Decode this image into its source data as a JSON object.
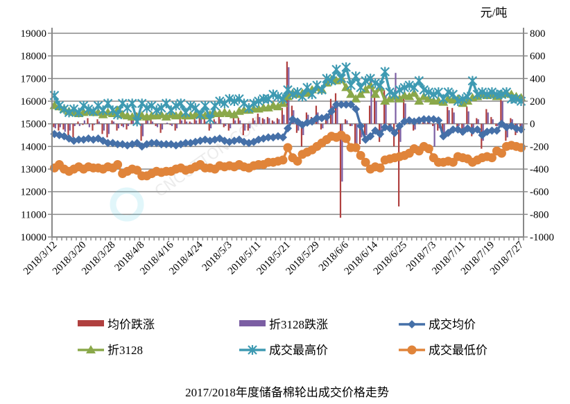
{
  "chart_data": {
    "type": "line",
    "title": "2017/2018年度储备棉轮出成交价格走势",
    "right_axis_unit": "元/吨",
    "x_tick_labels": [
      "2018/3/12",
      "2018/3/20",
      "2018/3/28",
      "2018/4/8",
      "2018/4/16",
      "2018/4/24",
      "2018/5/3",
      "2018/5/11",
      "2018/5/21",
      "2018/5/29",
      "2018/6/6",
      "2018/6/14",
      "2018/6/25",
      "2018/7/3",
      "2018/7/11",
      "2018/7/19",
      "2018/7/27"
    ],
    "left_axis": {
      "ylim": [
        10000,
        19000
      ],
      "ticks": [
        10000,
        11000,
        12000,
        13000,
        14000,
        15000,
        16000,
        17000,
        18000,
        19000
      ]
    },
    "right_axis": {
      "ylim": [
        -1000,
        800
      ],
      "ticks": [
        -1000,
        -800,
        -600,
        -400,
        -200,
        0,
        200,
        400,
        600,
        800
      ]
    },
    "grid": true,
    "legend_placement": "bottom",
    "series": [
      {
        "name": "均价跌涨",
        "kind": "bar",
        "axis": "right",
        "color": "#b0403f",
        "values": [
          -30,
          -60,
          -50,
          -100,
          -120,
          20,
          -10,
          50,
          -60,
          40,
          -90,
          -120,
          30,
          -60,
          -20,
          -50,
          40,
          100,
          -150,
          60,
          40,
          -20,
          -80,
          0,
          -10,
          -60,
          50,
          40,
          20,
          50,
          60,
          50,
          -60,
          40,
          60,
          -30,
          -60,
          50,
          50,
          -100,
          -60,
          50,
          90,
          50,
          60,
          30,
          50,
          140,
          550,
          160,
          -80,
          -200,
          100,
          60,
          160,
          -50,
          60,
          220,
          270,
          -830,
          40,
          -20,
          -230,
          -180,
          -120,
          160,
          250,
          -160,
          300,
          -60,
          -200,
          -730,
          230,
          60,
          -60,
          50,
          50,
          40,
          -20,
          -60,
          -110,
          150,
          140,
          -30,
          -100,
          150,
          -110,
          50,
          -220,
          130,
          60,
          -20,
          290,
          -150,
          50,
          -100,
          -50
        ]
      },
      {
        "name": "折3128跌涨",
        "kind": "bar",
        "axis": "right",
        "color": "#7b5ea3",
        "values": [
          -40,
          -30,
          -70,
          -60,
          -20,
          -20,
          30,
          -30,
          -10,
          20,
          -60,
          -90,
          20,
          -40,
          -30,
          -20,
          30,
          60,
          -110,
          40,
          20,
          -30,
          -50,
          10,
          -20,
          -40,
          30,
          20,
          10,
          30,
          40,
          20,
          -40,
          20,
          40,
          -20,
          -40,
          30,
          30,
          -60,
          -40,
          30,
          60,
          40,
          50,
          20,
          40,
          80,
          500,
          120,
          -60,
          -100,
          80,
          40,
          100,
          -40,
          40,
          160,
          200,
          -510,
          30,
          -20,
          -180,
          -120,
          -100,
          420,
          200,
          -120,
          250,
          -40,
          450,
          -160,
          180,
          40,
          -50,
          40,
          40,
          30,
          -200,
          -40,
          -90,
          120,
          100,
          -20,
          -80,
          110,
          -90,
          40,
          -150,
          100,
          40,
          -20,
          200,
          -120,
          40,
          -80,
          -40
        ]
      },
      {
        "name": "成交均价",
        "kind": "line",
        "marker": "diamond",
        "axis": "left",
        "color": "#4570a8",
        "values": [
          14550,
          14500,
          14450,
          14350,
          14250,
          14300,
          14300,
          14350,
          14300,
          14350,
          14250,
          14150,
          14150,
          14100,
          14100,
          14050,
          14100,
          14150,
          14000,
          14100,
          14150,
          14150,
          14100,
          14100,
          14100,
          14050,
          14100,
          14150,
          14150,
          14200,
          14250,
          14300,
          14250,
          14300,
          14350,
          14250,
          14200,
          14250,
          14300,
          14200,
          14150,
          14200,
          14300,
          14350,
          14400,
          14400,
          14450,
          14400,
          14800,
          15200,
          15100,
          14950,
          15050,
          15100,
          15250,
          15250,
          15300,
          15550,
          15850,
          15850,
          15850,
          15850,
          15650,
          14900,
          14300,
          14450,
          14700,
          14550,
          14850,
          14800,
          14600,
          14900,
          15100,
          15150,
          15100,
          15150,
          15200,
          15200,
          15200,
          15150,
          14450,
          14600,
          14750,
          14750,
          14650,
          14800,
          14700,
          14750,
          14500,
          14650,
          14700,
          14700,
          15000,
          14850,
          14900,
          14800,
          14750
        ]
      },
      {
        "name": "折3128",
        "kind": "line",
        "marker": "triangle",
        "axis": "left",
        "color": "#8aa84a",
        "values": [
          15800,
          15750,
          15650,
          15550,
          15500,
          15450,
          15500,
          15550,
          15500,
          15500,
          15400,
          15500,
          15450,
          15600,
          15400,
          15350,
          15300,
          15300,
          15350,
          15300,
          15350,
          15350,
          15400,
          15300,
          15400,
          15350,
          15400,
          15350,
          15350,
          15400,
          15400,
          15350,
          15400,
          15450,
          15450,
          15500,
          15450,
          15400,
          15550,
          15600,
          15600,
          15650,
          15650,
          15700,
          15700,
          15800,
          15750,
          15900,
          16200,
          16350,
          16300,
          16350,
          16350,
          16500,
          16600,
          16500,
          16800,
          16950,
          16900,
          17000,
          16600,
          16300,
          16100,
          16300,
          16500,
          16700,
          16300,
          16600,
          16000,
          16100,
          16200,
          16100,
          16250,
          16200,
          16350,
          16000,
          16200,
          16100,
          16000,
          16000,
          15950,
          16100,
          16050,
          16100,
          15900,
          16000,
          16150,
          16200,
          16300,
          16250,
          16300,
          16200,
          16300,
          16350,
          16300,
          16200,
          16150
        ]
      },
      {
        "name": "成交最高价",
        "kind": "line",
        "marker": "star",
        "axis": "left",
        "color": "#3e9ab2",
        "values": [
          16250,
          15800,
          15650,
          15500,
          15650,
          15500,
          15800,
          15650,
          15550,
          15800,
          15600,
          15900,
          15600,
          15400,
          15900,
          15700,
          15900,
          15100,
          15900,
          15700,
          15800,
          15600,
          15700,
          15900,
          15600,
          15800,
          15900,
          15500,
          15800,
          15700,
          15400,
          15800,
          15200,
          15800,
          16000,
          15900,
          16100,
          16000,
          16100,
          15900,
          15700,
          15900,
          16000,
          16100,
          16100,
          16300,
          16200,
          16100,
          16500,
          16300,
          16400,
          16200,
          16600,
          16300,
          16700,
          16500,
          17000,
          16900,
          17400,
          17000,
          17500,
          16700,
          17100,
          16600,
          16900,
          17000,
          16800,
          16700,
          17300,
          16400,
          16300,
          16500,
          16600,
          16700,
          16600,
          16900,
          16500,
          16400,
          16300,
          16400,
          16100,
          16400,
          16300,
          16000,
          16100,
          16200,
          16900,
          16300,
          16400,
          16300,
          16400,
          16300,
          16300,
          16400,
          16100,
          16100,
          16000
        ]
      },
      {
        "name": "成交最低价",
        "kind": "line",
        "marker": "circle",
        "axis": "left",
        "color": "#e0843a",
        "values": [
          13050,
          13200,
          13000,
          12900,
          13000,
          13100,
          13000,
          13100,
          13050,
          13050,
          13000,
          13100,
          13050,
          13200,
          12800,
          12900,
          13000,
          12950,
          12700,
          12700,
          12800,
          12900,
          12850,
          12900,
          12900,
          13000,
          13050,
          12950,
          13000,
          13100,
          13200,
          13050,
          13050,
          13000,
          13150,
          13100,
          13150,
          13100,
          13200,
          13100,
          13050,
          13150,
          13200,
          13200,
          13300,
          13300,
          13350,
          13400,
          13950,
          13500,
          13350,
          13650,
          13750,
          13850,
          14000,
          14150,
          14300,
          14450,
          14400,
          14500,
          14350,
          13950,
          13950,
          13600,
          13300,
          13000,
          13100,
          13050,
          13400,
          13450,
          13500,
          13550,
          13600,
          13700,
          13900,
          13800,
          14000,
          13900,
          13500,
          13300,
          13300,
          13350,
          13300,
          13550,
          13500,
          13450,
          13300,
          13400,
          13500,
          13550,
          13500,
          13800,
          13700,
          14000,
          14050,
          14000,
          13950
        ]
      }
    ]
  },
  "watermark": "中国棉花网 CNCOTTON.COM"
}
